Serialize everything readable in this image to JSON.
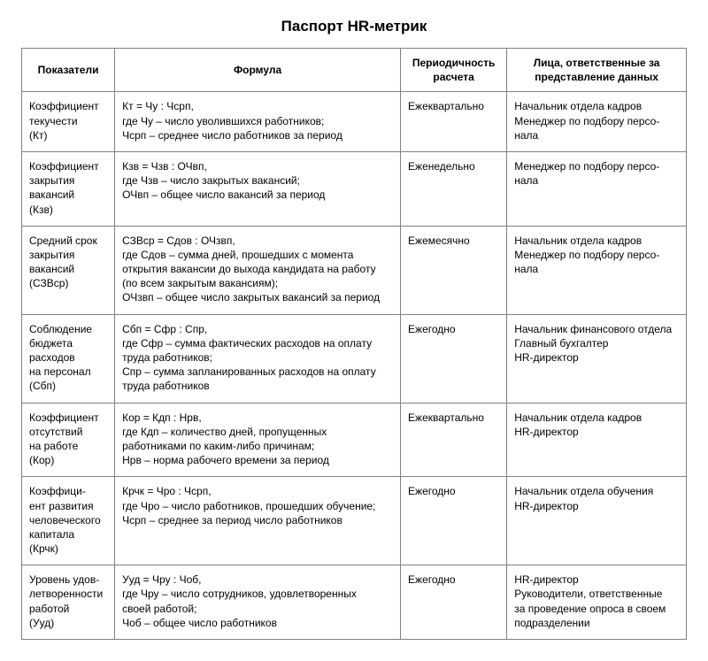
{
  "title": "Паспорт HR-метрик",
  "columns": [
    "Показатели",
    "Формула",
    "Периодичность расчета",
    "Лица, ответственные за представление данных"
  ],
  "rows": [
    {
      "metric_lines": [
        "Коэффициент",
        "текучести",
        "(Кт)"
      ],
      "formula_lines": [
        "Кт = Чу : Чсрп,",
        "где Чу – число уволившихся работников;",
        "Чсрп – среднее число работников за период"
      ],
      "period": "Ежеквартально",
      "responsible_lines": [
        "Начальник отдела кадров",
        "Менеджер по подбору персо-",
        "нала"
      ]
    },
    {
      "metric_lines": [
        "Коэффициент",
        "закрытия",
        "вакансий",
        "(Кзв)"
      ],
      "formula_lines": [
        "Кзв = Чзв : ОЧвп,",
        "где Чзв – число закрытых вакансий;",
        "ОЧвп – общее число вакансий за период"
      ],
      "period": "Еженедельно",
      "responsible_lines": [
        "Менеджер по подбору персо-",
        "нала"
      ]
    },
    {
      "metric_lines": [
        "Средний срок",
        "закрытия",
        "вакансий",
        "(СЗВср)"
      ],
      "formula_lines": [
        "СЗВср = Сдов : ОЧзвп,",
        "где Сдов – сумма дней, прошедших с момента",
        "открытия вакансии до выхода кандидата на работу",
        "(по всем закрытым вакансиям);",
        "ОЧзвп – общее число закрытых вакансий за период"
      ],
      "period": "Ежемесячно",
      "responsible_lines": [
        "Начальник отдела кадров",
        "Менеджер по подбору персо-",
        "нала"
      ]
    },
    {
      "metric_lines": [
        "Соблюдение",
        "бюджета",
        "расходов",
        "на персонал",
        "(Сбп)"
      ],
      "formula_lines": [
        "Сбп = Сфр : Спр,",
        "где Сфр – сумма фактических расходов на оплату",
        "труда работников;",
        "Спр – сумма запланированных расходов на оплату",
        "труда работников"
      ],
      "period": "Ежегодно",
      "responsible_lines": [
        "Начальник финансового отдела",
        "Главный бухгалтер",
        "HR-директор"
      ]
    },
    {
      "metric_lines": [
        "Коэффициент",
        "отсутствий",
        "на работе",
        "(Кор)"
      ],
      "formula_lines": [
        "Кор = Кдп : Нрв,",
        "где Кдп – количество дней, пропущенных",
        "работниками по каким-либо причинам;",
        "Нрв – норма рабочего времени за период"
      ],
      "period": "Ежеквартально",
      "responsible_lines": [
        "Начальник отдела кадров",
        "HR-директор"
      ]
    },
    {
      "metric_lines": [
        "Коэффици-",
        "ент развития",
        "человеческого",
        "капитала",
        "(Крчк)"
      ],
      "formula_lines": [
        "Крчк = Чро : Чсрп,",
        "где Чро – число работников, прошедших обучение;",
        "Чсрп – среднее за период число работников"
      ],
      "period": "Ежегодно",
      "responsible_lines": [
        "Начальник отдела обучения",
        "HR-директор"
      ]
    },
    {
      "metric_lines": [
        "Уровень удов-",
        "летворенности",
        "работой",
        "(Ууд)"
      ],
      "formula_lines": [
        "Ууд = Чру : Чоб,",
        "где Чру – число сотрудников, удовлетворенных",
        "своей работой;",
        "Чоб – общее число работников"
      ],
      "period": "Ежегодно",
      "responsible_lines": [
        "HR-директор",
        "Руководители, ответственные",
        "за проведение опроса в своем",
        "подразделении"
      ]
    }
  ]
}
